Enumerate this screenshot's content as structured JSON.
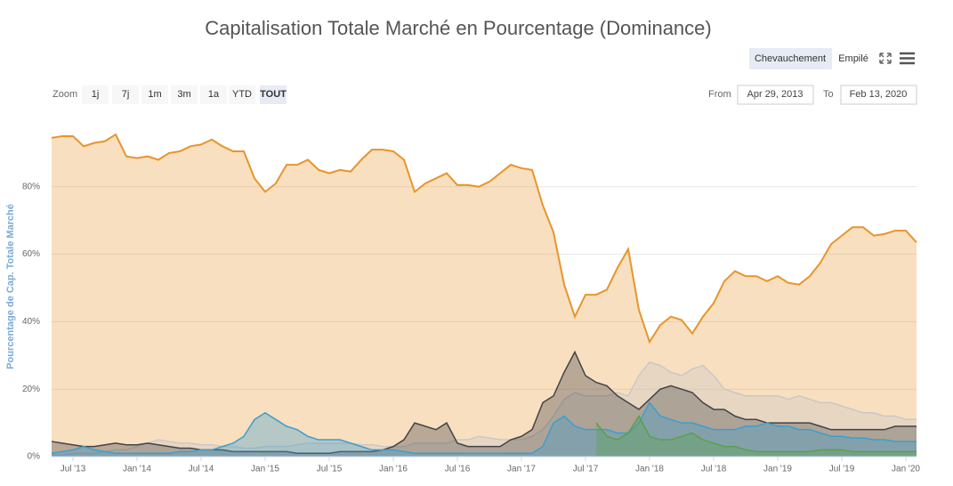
{
  "controls": {
    "view_modes": [
      "Chevauchement",
      "Empilé"
    ],
    "zoom_label": "Zoom",
    "zoom_buttons": [
      "1j",
      "7j",
      "1m",
      "3m",
      "1a",
      "YTD",
      "TOUT"
    ],
    "from_label": "From",
    "from": "Apr 29, 2013",
    "to_label": "To",
    "to": "Feb 13, 2020"
  },
  "chart_data": {
    "type": "area",
    "title": "Capitalisation Totale Marché en Pourcentage (Dominance)",
    "y_label": "Pourcentage de Cap. Totale Marché",
    "x": [
      "2013-05",
      "2013-06",
      "2013-07",
      "2013-08",
      "2013-09",
      "2013-10",
      "2013-11",
      "2013-12",
      "2014-01",
      "2014-02",
      "2014-03",
      "2014-04",
      "2014-05",
      "2014-06",
      "2014-07",
      "2014-08",
      "2014-09",
      "2014-10",
      "2014-11",
      "2014-12",
      "2015-01",
      "2015-02",
      "2015-03",
      "2015-04",
      "2015-05",
      "2015-06",
      "2015-07",
      "2015-08",
      "2015-09",
      "2015-10",
      "2015-11",
      "2015-12",
      "2016-01",
      "2016-02",
      "2016-03",
      "2016-04",
      "2016-05",
      "2016-06",
      "2016-07",
      "2016-08",
      "2016-09",
      "2016-10",
      "2016-11",
      "2016-12",
      "2017-01",
      "2017-02",
      "2017-03",
      "2017-04",
      "2017-05",
      "2017-06",
      "2017-07",
      "2017-08",
      "2017-09",
      "2017-10",
      "2017-11",
      "2017-12",
      "2018-01",
      "2018-02",
      "2018-03",
      "2018-04",
      "2018-05",
      "2018-06",
      "2018-07",
      "2018-08",
      "2018-09",
      "2018-10",
      "2018-11",
      "2018-12",
      "2019-01",
      "2019-02",
      "2019-03",
      "2019-04",
      "2019-05",
      "2019-06",
      "2019-07",
      "2019-08",
      "2019-09",
      "2019-10",
      "2019-11",
      "2019-12",
      "2020-01",
      "2020-02"
    ],
    "xlim": [
      "2013-05",
      "2020-02"
    ],
    "xticks": [
      {
        "value": "2013-07",
        "label": "Jul '13"
      },
      {
        "value": "2014-01",
        "label": "Jan '14"
      },
      {
        "value": "2014-07",
        "label": "Jul '14"
      },
      {
        "value": "2015-01",
        "label": "Jan '15"
      },
      {
        "value": "2015-07",
        "label": "Jul '15"
      },
      {
        "value": "2016-01",
        "label": "Jan '16"
      },
      {
        "value": "2016-07",
        "label": "Jul '16"
      },
      {
        "value": "2017-01",
        "label": "Jan '17"
      },
      {
        "value": "2017-07",
        "label": "Jul '17"
      },
      {
        "value": "2018-01",
        "label": "Jan '18"
      },
      {
        "value": "2018-07",
        "label": "Jul '18"
      },
      {
        "value": "2019-01",
        "label": "Jan '19"
      },
      {
        "value": "2019-07",
        "label": "Jul '19"
      },
      {
        "value": "2020-01",
        "label": "Jan '20"
      }
    ],
    "ylim": [
      0,
      100
    ],
    "yticks": [
      {
        "value": 0,
        "label": "0%"
      },
      {
        "value": 20,
        "label": "20%"
      },
      {
        "value": 40,
        "label": "40%"
      },
      {
        "value": 60,
        "label": "60%"
      },
      {
        "value": 80,
        "label": "80%"
      }
    ],
    "grid": true,
    "series": [
      {
        "color": "#e8952b",
        "values": [
          94.5,
          95,
          95,
          92,
          93,
          93.5,
          95.5,
          89,
          88.5,
          89,
          88,
          90,
          90.5,
          92,
          92.5,
          94,
          92,
          90.5,
          90.5,
          82.5,
          78.5,
          81,
          86.5,
          86.5,
          88,
          85,
          84,
          85,
          84.5,
          88,
          91,
          91,
          90.5,
          88,
          78.5,
          81,
          82.5,
          84,
          80.5,
          80.5,
          80,
          81.5,
          84,
          86.5,
          85.5,
          85,
          74.5,
          66.5,
          51,
          41.5,
          48,
          48,
          49.5,
          56,
          61.5,
          43.5,
          34,
          39,
          41.5,
          40.5,
          36.5,
          41.5,
          45.5,
          52,
          55,
          53.5,
          53.5,
          52,
          53.5,
          51.5,
          51,
          53.5,
          57.5,
          63,
          65.5,
          68,
          68,
          65.5,
          66,
          67,
          67,
          63.5
        ]
      },
      {
        "color": "#c8c8c8",
        "values": [
          0.5,
          0.5,
          1,
          1,
          1,
          1.5,
          2,
          2,
          3,
          4,
          5,
          4.5,
          4,
          4,
          3.5,
          3.5,
          3,
          3,
          2.5,
          2.5,
          3,
          3,
          3,
          3.5,
          4,
          4,
          4,
          4,
          4,
          3.5,
          3.5,
          3,
          3,
          3,
          4,
          4,
          4,
          4,
          5,
          5,
          6,
          5.5,
          5,
          5,
          5,
          6,
          8,
          12,
          17,
          19,
          18,
          18,
          18,
          19,
          18,
          24,
          28,
          27,
          25,
          24,
          26,
          27,
          24,
          20,
          19,
          18,
          18,
          18,
          18,
          17,
          18,
          17,
          16,
          16,
          15,
          14,
          13,
          13,
          12,
          12,
          11,
          11
        ]
      },
      {
        "color": "#434348",
        "values": [
          4.5,
          4,
          3.5,
          3,
          3,
          3.5,
          4,
          3.5,
          3.5,
          4,
          3.5,
          3,
          2.5,
          2.5,
          2,
          2,
          2,
          1.5,
          1.5,
          1.5,
          1.5,
          1.5,
          1.5,
          1,
          1,
          1,
          1,
          1.5,
          1.5,
          1.5,
          1.5,
          2,
          3,
          5,
          10,
          9,
          8,
          10,
          4,
          3,
          3,
          3,
          3,
          5,
          6,
          8,
          16,
          18,
          25,
          31,
          24,
          22,
          21,
          18,
          16,
          14,
          17,
          20,
          21,
          20,
          19,
          16,
          14,
          14,
          12,
          11,
          11,
          10,
          10,
          10,
          10,
          10,
          9,
          8,
          8,
          8,
          8,
          8,
          8,
          9,
          9,
          9
        ]
      },
      {
        "color": "#3a9fd0",
        "values": [
          1,
          1.5,
          2,
          3,
          2,
          1.5,
          1,
          1,
          1,
          1,
          1,
          1,
          1.5,
          1.5,
          2,
          2,
          3,
          4,
          6,
          11,
          13,
          11,
          9,
          8,
          6,
          5,
          5,
          5,
          4,
          3,
          2,
          2,
          2,
          1.5,
          1,
          1,
          1,
          1,
          1,
          1,
          1,
          1,
          1,
          1,
          1,
          1,
          3,
          10,
          12,
          9,
          8,
          8,
          8,
          7,
          7,
          10,
          16,
          12,
          11,
          10,
          10,
          9,
          8,
          8,
          8,
          9,
          9,
          10,
          9,
          9,
          8,
          8,
          7,
          6,
          6,
          5.5,
          5.5,
          5,
          5,
          4.5,
          4.5,
          4.5
        ]
      },
      {
        "color": "#5aa14a",
        "values": [
          null,
          null,
          null,
          null,
          null,
          null,
          null,
          null,
          null,
          null,
          null,
          null,
          null,
          null,
          null,
          null,
          null,
          null,
          null,
          null,
          null,
          null,
          null,
          null,
          null,
          null,
          null,
          null,
          null,
          null,
          null,
          null,
          null,
          null,
          null,
          null,
          null,
          null,
          null,
          null,
          null,
          null,
          null,
          null,
          null,
          null,
          null,
          null,
          null,
          null,
          null,
          10,
          6,
          5,
          7,
          12,
          6,
          5,
          5,
          6,
          7,
          5,
          4,
          3,
          3,
          2,
          1.5,
          1.5,
          1.5,
          1.5,
          1.5,
          1.5,
          2,
          2,
          2,
          1.5,
          1.5,
          1.5,
          1.5,
          1.5,
          1.5,
          1.5
        ]
      }
    ]
  }
}
